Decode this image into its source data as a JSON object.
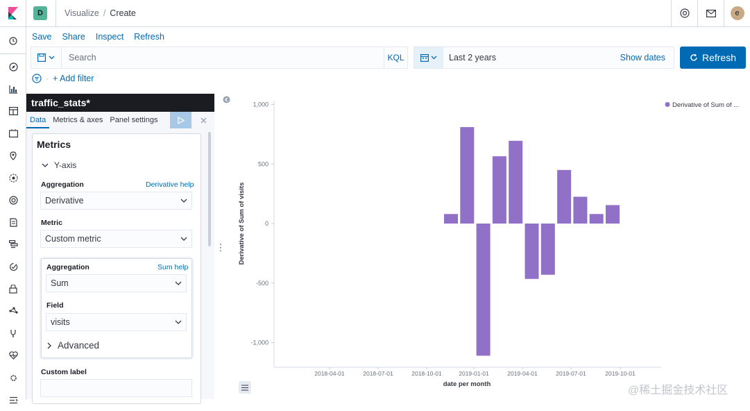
{
  "header": {
    "space_initial": "D",
    "breadcrumbs": [
      "Visualize",
      "Create"
    ],
    "user_initial": "e"
  },
  "top_menu": [
    "Save",
    "Share",
    "Inspect",
    "Refresh"
  ],
  "query": {
    "placeholder": "Search",
    "language": "KQL",
    "time_range": "Last 2 years",
    "show_dates": "Show dates",
    "refresh_label": "Refresh",
    "add_filter": "+ Add filter"
  },
  "editor": {
    "title": "traffic_stats*",
    "tabs": [
      "Data",
      "Metrics & axes",
      "Panel settings"
    ],
    "section": "Metrics",
    "y_axis": "Y-axis",
    "aggregation_label": "Aggregation",
    "aggregation_help": "Derivative help",
    "aggregation_value": "Derivative",
    "metric_label": "Metric",
    "metric_value": "Custom metric",
    "sub": {
      "aggregation_label": "Aggregation",
      "aggregation_help": "Sum help",
      "aggregation_value": "Sum",
      "field_label": "Field",
      "field_value": "visits",
      "advanced": "Advanced"
    },
    "custom_label": "Custom label"
  },
  "chart_data": {
    "type": "bar",
    "legend": "Derivative of Sum of ...",
    "ylabel": "Derivative of Sum of visits",
    "xlabel": "date per month",
    "yticks": [
      "1,000",
      "500",
      "0",
      "-500",
      "-1,000"
    ],
    "ylim": [
      -1200,
      1000
    ],
    "xticks": [
      "2018-04-01",
      "2018-07-01",
      "2018-10-01",
      "2019-01-01",
      "2019-04-01",
      "2019-07-01",
      "2019-10-01"
    ],
    "categories": [
      "2018-12",
      "2019-01",
      "2019-02",
      "2019-03",
      "2019-04",
      "2019-05",
      "2019-06",
      "2019-07",
      "2019-08",
      "2019-09",
      "2019-10"
    ],
    "values": [
      80,
      810,
      -1110,
      565,
      695,
      -465,
      -430,
      450,
      225,
      80,
      155
    ],
    "color": "#9170c7"
  },
  "watermark": "@稀土掘金技术社区"
}
